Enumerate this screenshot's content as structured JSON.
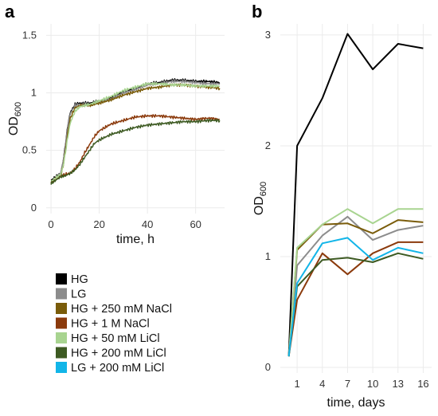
{
  "chart_data": [
    {
      "panel_label": "a",
      "type": "line",
      "xlabel": "time, h",
      "ylabel_main": "OD",
      "ylabel_sub": "600",
      "xlim": [
        -2,
        72
      ],
      "ylim": [
        -0.05,
        1.6
      ],
      "xticks": [
        0,
        20,
        40,
        60
      ],
      "yticks": [
        0,
        0.5,
        1,
        1.5
      ],
      "ytick_labels": [
        "0",
        "0.5",
        "1",
        "1.5"
      ],
      "grid": true,
      "series": [
        {
          "name": "HG",
          "color": "#000000",
          "points": [
            [
              0,
              0.24
            ],
            [
              2,
              0.27
            ],
            [
              4,
              0.3
            ],
            [
              5,
              0.4
            ],
            [
              6,
              0.55
            ],
            [
              7,
              0.72
            ],
            [
              8,
              0.83
            ],
            [
              10,
              0.9
            ],
            [
              12,
              0.91
            ],
            [
              16,
              0.91
            ],
            [
              20,
              0.93
            ],
            [
              25,
              0.96
            ],
            [
              30,
              1.01
            ],
            [
              35,
              1.04
            ],
            [
              40,
              1.08
            ],
            [
              45,
              1.09
            ],
            [
              50,
              1.11
            ],
            [
              55,
              1.11
            ],
            [
              60,
              1.1
            ],
            [
              65,
              1.1
            ],
            [
              70,
              1.09
            ]
          ]
        },
        {
          "name": "LG",
          "color": "#8c8c8c",
          "points": [
            [
              0,
              0.22
            ],
            [
              2,
              0.26
            ],
            [
              4,
              0.3
            ],
            [
              5,
              0.4
            ],
            [
              6,
              0.54
            ],
            [
              7,
              0.71
            ],
            [
              8,
              0.82
            ],
            [
              10,
              0.89
            ],
            [
              12,
              0.9
            ],
            [
              16,
              0.9
            ],
            [
              20,
              0.92
            ],
            [
              25,
              0.95
            ],
            [
              30,
              1.0
            ],
            [
              35,
              1.03
            ],
            [
              40,
              1.07
            ],
            [
              45,
              1.08
            ],
            [
              50,
              1.1
            ],
            [
              55,
              1.1
            ],
            [
              60,
              1.09
            ],
            [
              65,
              1.08
            ],
            [
              70,
              1.08
            ]
          ]
        },
        {
          "name": "HG + 250 mM NaCl",
          "color": "#7a5c0a",
          "points": [
            [
              0,
              0.22
            ],
            [
              2,
              0.25
            ],
            [
              4,
              0.28
            ],
            [
              5,
              0.36
            ],
            [
              6,
              0.5
            ],
            [
              7,
              0.66
            ],
            [
              8,
              0.78
            ],
            [
              10,
              0.87
            ],
            [
              12,
              0.89
            ],
            [
              16,
              0.89
            ],
            [
              20,
              0.91
            ],
            [
              25,
              0.94
            ],
            [
              30,
              0.98
            ],
            [
              35,
              1.01
            ],
            [
              40,
              1.04
            ],
            [
              45,
              1.05
            ],
            [
              50,
              1.07
            ],
            [
              55,
              1.07
            ],
            [
              60,
              1.06
            ],
            [
              65,
              1.05
            ],
            [
              70,
              1.04
            ]
          ]
        },
        {
          "name": "HG + 1 M NaCl",
          "color": "#8b3a0c",
          "points": [
            [
              0,
              0.22
            ],
            [
              2,
              0.25
            ],
            [
              4,
              0.28
            ],
            [
              6,
              0.29
            ],
            [
              8,
              0.3
            ],
            [
              10,
              0.34
            ],
            [
              12,
              0.4
            ],
            [
              14,
              0.48
            ],
            [
              16,
              0.55
            ],
            [
              18,
              0.62
            ],
            [
              20,
              0.67
            ],
            [
              25,
              0.73
            ],
            [
              30,
              0.76
            ],
            [
              35,
              0.79
            ],
            [
              40,
              0.8
            ],
            [
              45,
              0.8
            ],
            [
              50,
              0.79
            ],
            [
              55,
              0.78
            ],
            [
              60,
              0.77
            ],
            [
              65,
              0.78
            ],
            [
              70,
              0.77
            ]
          ]
        },
        {
          "name": "HG + 50 mM LiCl",
          "color": "#a8d490",
          "points": [
            [
              0,
              0.23
            ],
            [
              2,
              0.26
            ],
            [
              4,
              0.29
            ],
            [
              5,
              0.36
            ],
            [
              6,
              0.48
            ],
            [
              7,
              0.62
            ],
            [
              8,
              0.74
            ],
            [
              10,
              0.84
            ],
            [
              12,
              0.88
            ],
            [
              16,
              0.9
            ],
            [
              20,
              0.93
            ],
            [
              25,
              0.97
            ],
            [
              30,
              1.02
            ],
            [
              35,
              1.05
            ],
            [
              40,
              1.08
            ],
            [
              45,
              1.08
            ],
            [
              50,
              1.07
            ],
            [
              55,
              1.07
            ],
            [
              60,
              1.06
            ],
            [
              65,
              1.06
            ],
            [
              70,
              1.06
            ]
          ]
        },
        {
          "name": "HG + 200 mM LiCl",
          "color": "#3d5a22",
          "points": [
            [
              0,
              0.21
            ],
            [
              2,
              0.24
            ],
            [
              4,
              0.27
            ],
            [
              6,
              0.28
            ],
            [
              8,
              0.3
            ],
            [
              10,
              0.33
            ],
            [
              12,
              0.38
            ],
            [
              14,
              0.44
            ],
            [
              16,
              0.5
            ],
            [
              18,
              0.56
            ],
            [
              20,
              0.59
            ],
            [
              25,
              0.64
            ],
            [
              30,
              0.67
            ],
            [
              35,
              0.7
            ],
            [
              40,
              0.72
            ],
            [
              45,
              0.73
            ],
            [
              50,
              0.74
            ],
            [
              55,
              0.75
            ],
            [
              60,
              0.75
            ],
            [
              65,
              0.76
            ],
            [
              70,
              0.76
            ]
          ]
        }
      ]
    },
    {
      "panel_label": "b",
      "type": "line",
      "xlabel": "time, days",
      "ylabel_main": "OD",
      "ylabel_sub": "600",
      "xlim": [
        -1,
        17
      ],
      "ylim": [
        -0.05,
        3.1
      ],
      "xticks": [
        1,
        4,
        7,
        10,
        13,
        16
      ],
      "yticks": [
        0,
        1,
        2,
        3
      ],
      "ytick_labels": [
        "0",
        "1",
        "2",
        "3"
      ],
      "grid": true,
      "series": [
        {
          "name": "HG",
          "color": "#000000",
          "x": [
            0,
            1,
            4,
            7,
            10,
            13,
            16
          ],
          "y": [
            0.1,
            2.0,
            2.43,
            3.01,
            2.69,
            2.92,
            2.88
          ]
        },
        {
          "name": "LG",
          "color": "#8c8c8c",
          "x": [
            0,
            1,
            4,
            7,
            10,
            13,
            16
          ],
          "y": [
            0.1,
            0.92,
            1.19,
            1.36,
            1.15,
            1.24,
            1.28
          ]
        },
        {
          "name": "HG + 250 mM NaCl",
          "color": "#7a5c0a",
          "x": [
            0,
            1,
            4,
            7,
            10,
            13,
            16
          ],
          "y": [
            0.1,
            1.06,
            1.29,
            1.3,
            1.21,
            1.33,
            1.31
          ]
        },
        {
          "name": "HG + 1 M NaCl",
          "color": "#8b3a0c",
          "x": [
            0,
            1,
            4,
            7,
            10,
            13,
            16
          ],
          "y": [
            0.1,
            0.61,
            1.03,
            0.84,
            1.03,
            1.13,
            1.13
          ]
        },
        {
          "name": "HG + 50 mM LiCl",
          "color": "#a8d490",
          "x": [
            0,
            1,
            4,
            7,
            10,
            13,
            16
          ],
          "y": [
            0.1,
            1.08,
            1.29,
            1.43,
            1.3,
            1.43,
            1.43
          ]
        },
        {
          "name": "HG + 200 mM LiCl",
          "color": "#3d5a22",
          "x": [
            0,
            1,
            4,
            7,
            10,
            13,
            16
          ],
          "y": [
            0.1,
            0.73,
            0.97,
            0.99,
            0.95,
            1.03,
            0.98
          ]
        },
        {
          "name": "LG + 200 mM LiCl",
          "color": "#12b5e8",
          "x": [
            0,
            1,
            4,
            7,
            10,
            13,
            16
          ],
          "y": [
            0.1,
            0.76,
            1.12,
            1.17,
            0.97,
            1.08,
            1.03
          ]
        }
      ]
    }
  ],
  "legend": [
    {
      "label": "HG",
      "color": "#000000"
    },
    {
      "label": "LG",
      "color": "#8c8c8c"
    },
    {
      "label": "HG + 250 mM NaCl",
      "color": "#7a5c0a"
    },
    {
      "label": "HG + 1 M NaCl",
      "color": "#8b3a0c"
    },
    {
      "label": "HG + 50 mM LiCl",
      "color": "#a8d490"
    },
    {
      "label": "HG + 200 mM LiCl",
      "color": "#3d5a22"
    },
    {
      "label": "LG + 200 mM LiCl",
      "color": "#12b5e8"
    }
  ]
}
